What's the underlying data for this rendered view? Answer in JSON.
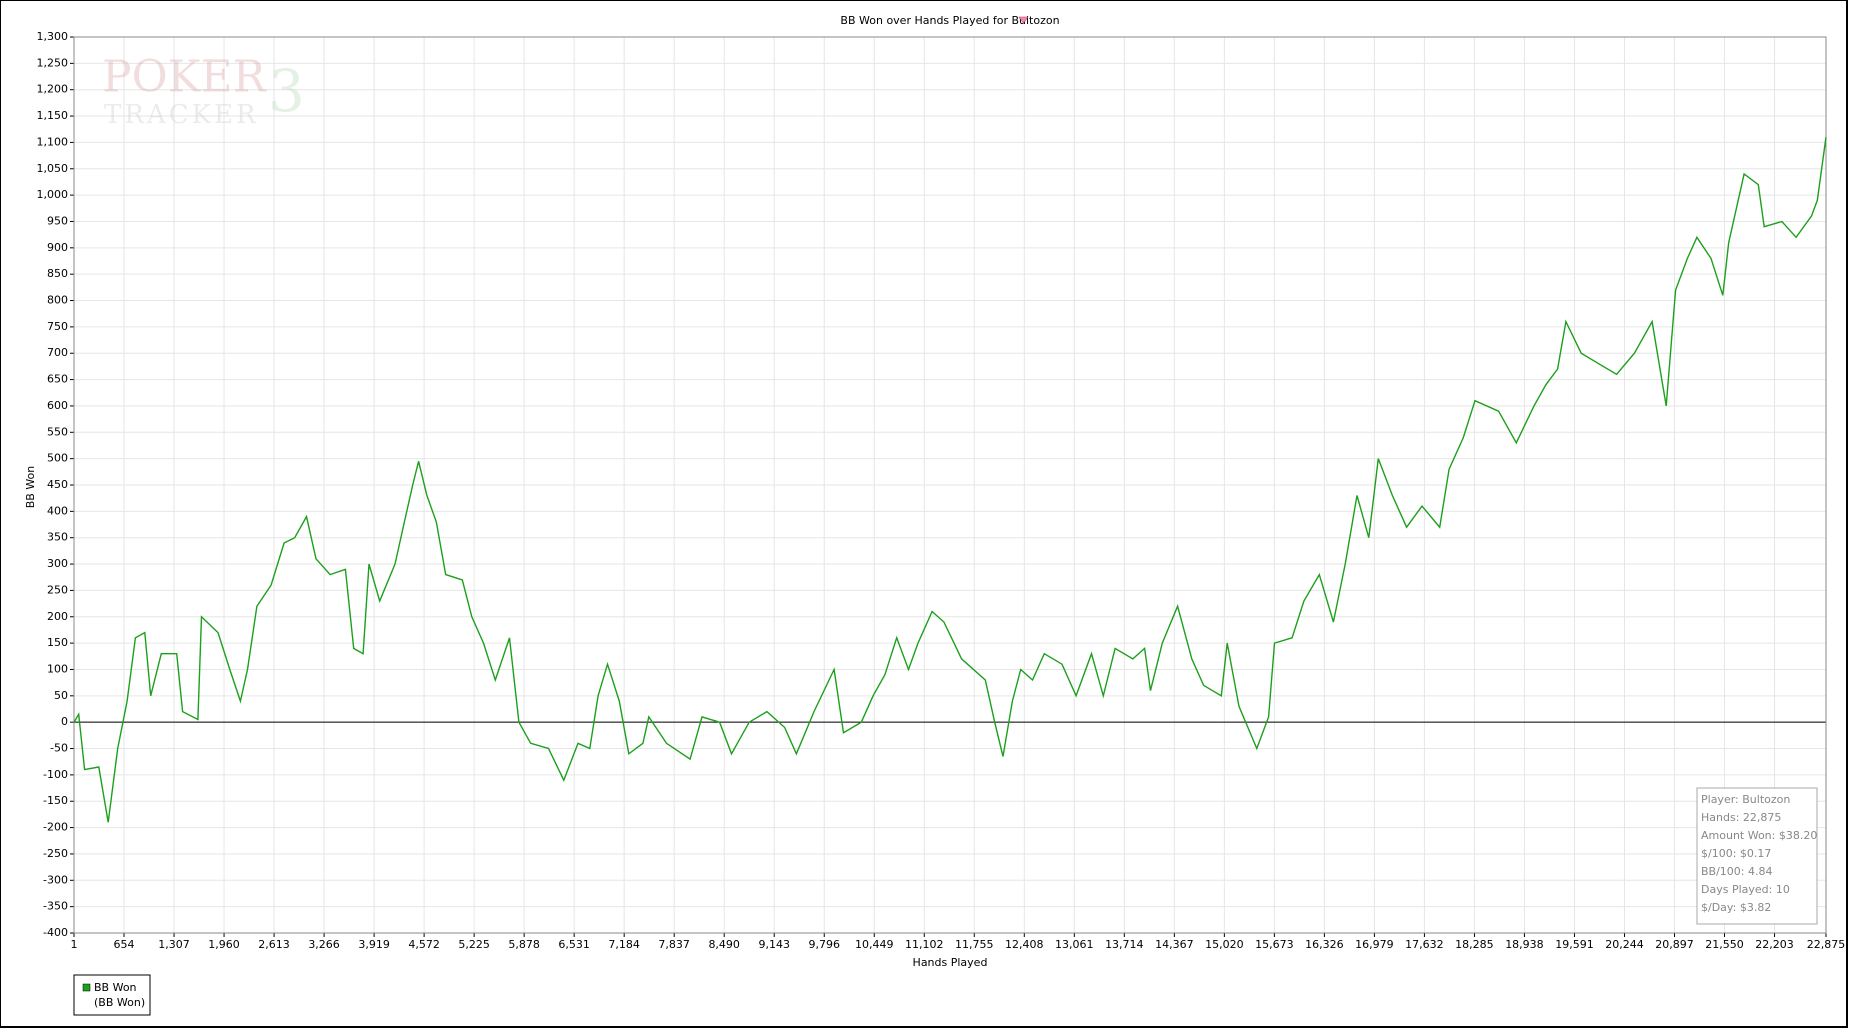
{
  "chart_data": {
    "type": "line",
    "title": "BB Won over Hands Played for Bultozon",
    "xlabel": "Hands Played",
    "ylabel": "BB Won",
    "watermark": [
      "POKER",
      "3",
      "TRACKER"
    ],
    "x": [
      1,
      63,
      140,
      325,
      448,
      571,
      694,
      802,
      926,
      1003,
      1141,
      1342,
      1419,
      1619,
      1665,
      1881,
      2035,
      2174,
      2266,
      2389,
      2574,
      2744,
      2882,
      3036,
      3160,
      3345,
      3545,
      3653,
      3776,
      3853,
      3992,
      4192,
      4315,
      4423,
      4500,
      4608,
      4731,
      4854,
      5070,
      5194,
      5348,
      5502,
      5687,
      5810,
      5964,
      6196,
      6396,
      6581,
      6735,
      6843,
      6966,
      7120,
      7244,
      7429,
      7506,
      7737,
      8045,
      8200,
      8430,
      8585,
      8816,
      9047,
      9278,
      9432,
      9663,
      9925,
      10048,
      10280,
      10434,
      10588,
      10742,
      10896,
      11020,
      11204,
      11359,
      11590,
      11899,
      12022,
      12130,
      12253,
      12361,
      12515,
      12669,
      12900,
      13085,
      13285,
      13439,
      13593,
      13824,
      13979,
      14056,
      14210,
      14410,
      14595,
      14749,
      14980,
      15057,
      15211,
      15443,
      15597,
      15674,
      15905,
      16059,
      16259,
      16444,
      16598,
      16752,
      16906,
      17030,
      17214,
      17399,
      17600,
      17831,
      17954,
      18139,
      18293,
      18601,
      18832,
      19063,
      19217,
      19371,
      19479,
      19679,
      19910,
      20141,
      20373,
      20604,
      20789,
      20912,
      21066,
      21189,
      21374,
      21528,
      21605,
      21806,
      21991,
      22068,
      22299,
      22484,
      22684,
      22761,
      22875
    ],
    "series": [
      {
        "name": "BB Won",
        "color": "#1ca01c",
        "values": [
          0,
          15,
          -90,
          -85,
          -190,
          -50,
          40,
          160,
          170,
          50,
          130,
          130,
          20,
          5,
          200,
          170,
          100,
          40,
          100,
          220,
          260,
          340,
          350,
          390,
          310,
          280,
          290,
          140,
          130,
          300,
          230,
          300,
          380,
          450,
          495,
          430,
          380,
          280,
          270,
          200,
          150,
          80,
          160,
          0,
          -40,
          -50,
          -110,
          -40,
          -50,
          50,
          110,
          40,
          -60,
          -40,
          10,
          -40,
          -70,
          10,
          0,
          -60,
          0,
          20,
          -10,
          -60,
          20,
          100,
          -20,
          0,
          50,
          90,
          160,
          100,
          150,
          210,
          190,
          120,
          80,
          0,
          -65,
          40,
          100,
          80,
          130,
          110,
          50,
          130,
          50,
          140,
          120,
          140,
          60,
          150,
          220,
          120,
          70,
          50,
          150,
          30,
          -50,
          10,
          150,
          160,
          230,
          280,
          190,
          300,
          430,
          350,
          500,
          430,
          370,
          410,
          370,
          480,
          540,
          610,
          590,
          530,
          600,
          640,
          670,
          760,
          700,
          680,
          660,
          700,
          760,
          600,
          820,
          880,
          920,
          880,
          810,
          910,
          1040,
          1020,
          940,
          950,
          920,
          960,
          990,
          1110
        ]
      }
    ],
    "legend_sub": "(BB Won)",
    "xlim": [
      1,
      22875
    ],
    "xticks": [
      1,
      654,
      {
        "value": 1307,
        "label": "1,307"
      },
      {
        "value": 1960,
        "label": "1,960"
      },
      {
        "value": 2613,
        "label": "2,613"
      },
      {
        "value": 3266,
        "label": "3,266"
      },
      {
        "value": 3919,
        "label": "3,919"
      },
      {
        "value": 4572,
        "label": "4,572"
      },
      {
        "value": 5225,
        "label": "5,225"
      },
      {
        "value": 5878,
        "label": "5,878"
      },
      {
        "value": 6531,
        "label": "6,531"
      },
      {
        "value": 7184,
        "label": "7,184"
      },
      {
        "value": 7837,
        "label": "7,837"
      },
      {
        "value": 8490,
        "label": "8,490"
      },
      {
        "value": 9143,
        "label": "9,143"
      },
      {
        "value": 9796,
        "label": "9,796"
      },
      {
        "value": 10449,
        "label": "10,449"
      },
      {
        "value": 11102,
        "label": "11,102"
      },
      {
        "value": 11755,
        "label": "11,755"
      },
      {
        "value": 12408,
        "label": "12,408"
      },
      {
        "value": 13061,
        "label": "13,061"
      },
      {
        "value": 13714,
        "label": "13,714"
      },
      {
        "value": 14367,
        "label": "14,367"
      },
      {
        "value": 15020,
        "label": "15,020"
      },
      {
        "value": 15673,
        "label": "15,673"
      },
      {
        "value": 16326,
        "label": "16,326"
      },
      {
        "value": 16979,
        "label": "16,979"
      },
      {
        "value": 17632,
        "label": "17,632"
      },
      {
        "value": 18285,
        "label": "18,285"
      },
      {
        "value": 18938,
        "label": "18,938"
      },
      {
        "value": 19591,
        "label": "19,591"
      },
      {
        "value": 20244,
        "label": "20,244"
      },
      {
        "value": 20897,
        "label": "20,897"
      },
      {
        "value": 21550,
        "label": "21,550"
      },
      {
        "value": 22203,
        "label": "22,203"
      },
      {
        "value": 22875,
        "label": "22,875"
      }
    ],
    "ylim": [
      -400,
      1300
    ],
    "yticks": [
      -400,
      -350,
      -300,
      -250,
      -200,
      -150,
      -100,
      -50,
      0,
      50,
      100,
      150,
      200,
      250,
      300,
      350,
      400,
      450,
      500,
      550,
      600,
      650,
      700,
      750,
      800,
      850,
      900,
      950,
      {
        "value": 1000,
        "label": "1,000"
      },
      {
        "value": 1050,
        "label": "1,050"
      },
      {
        "value": 1100,
        "label": "1,100"
      },
      {
        "value": 1150,
        "label": "1,150"
      },
      {
        "value": 1200,
        "label": "1,200"
      },
      {
        "value": 1250,
        "label": "1,250"
      },
      {
        "value": 1300,
        "label": "1,300"
      }
    ],
    "grid": true,
    "stats": [
      "Player: Bultozon",
      "Hands: 22,875",
      "Amount Won: $38.20",
      "$/100: $0.17",
      "BB/100: 4.84",
      "Days Played: 10",
      "$/Day: $3.82"
    ]
  }
}
